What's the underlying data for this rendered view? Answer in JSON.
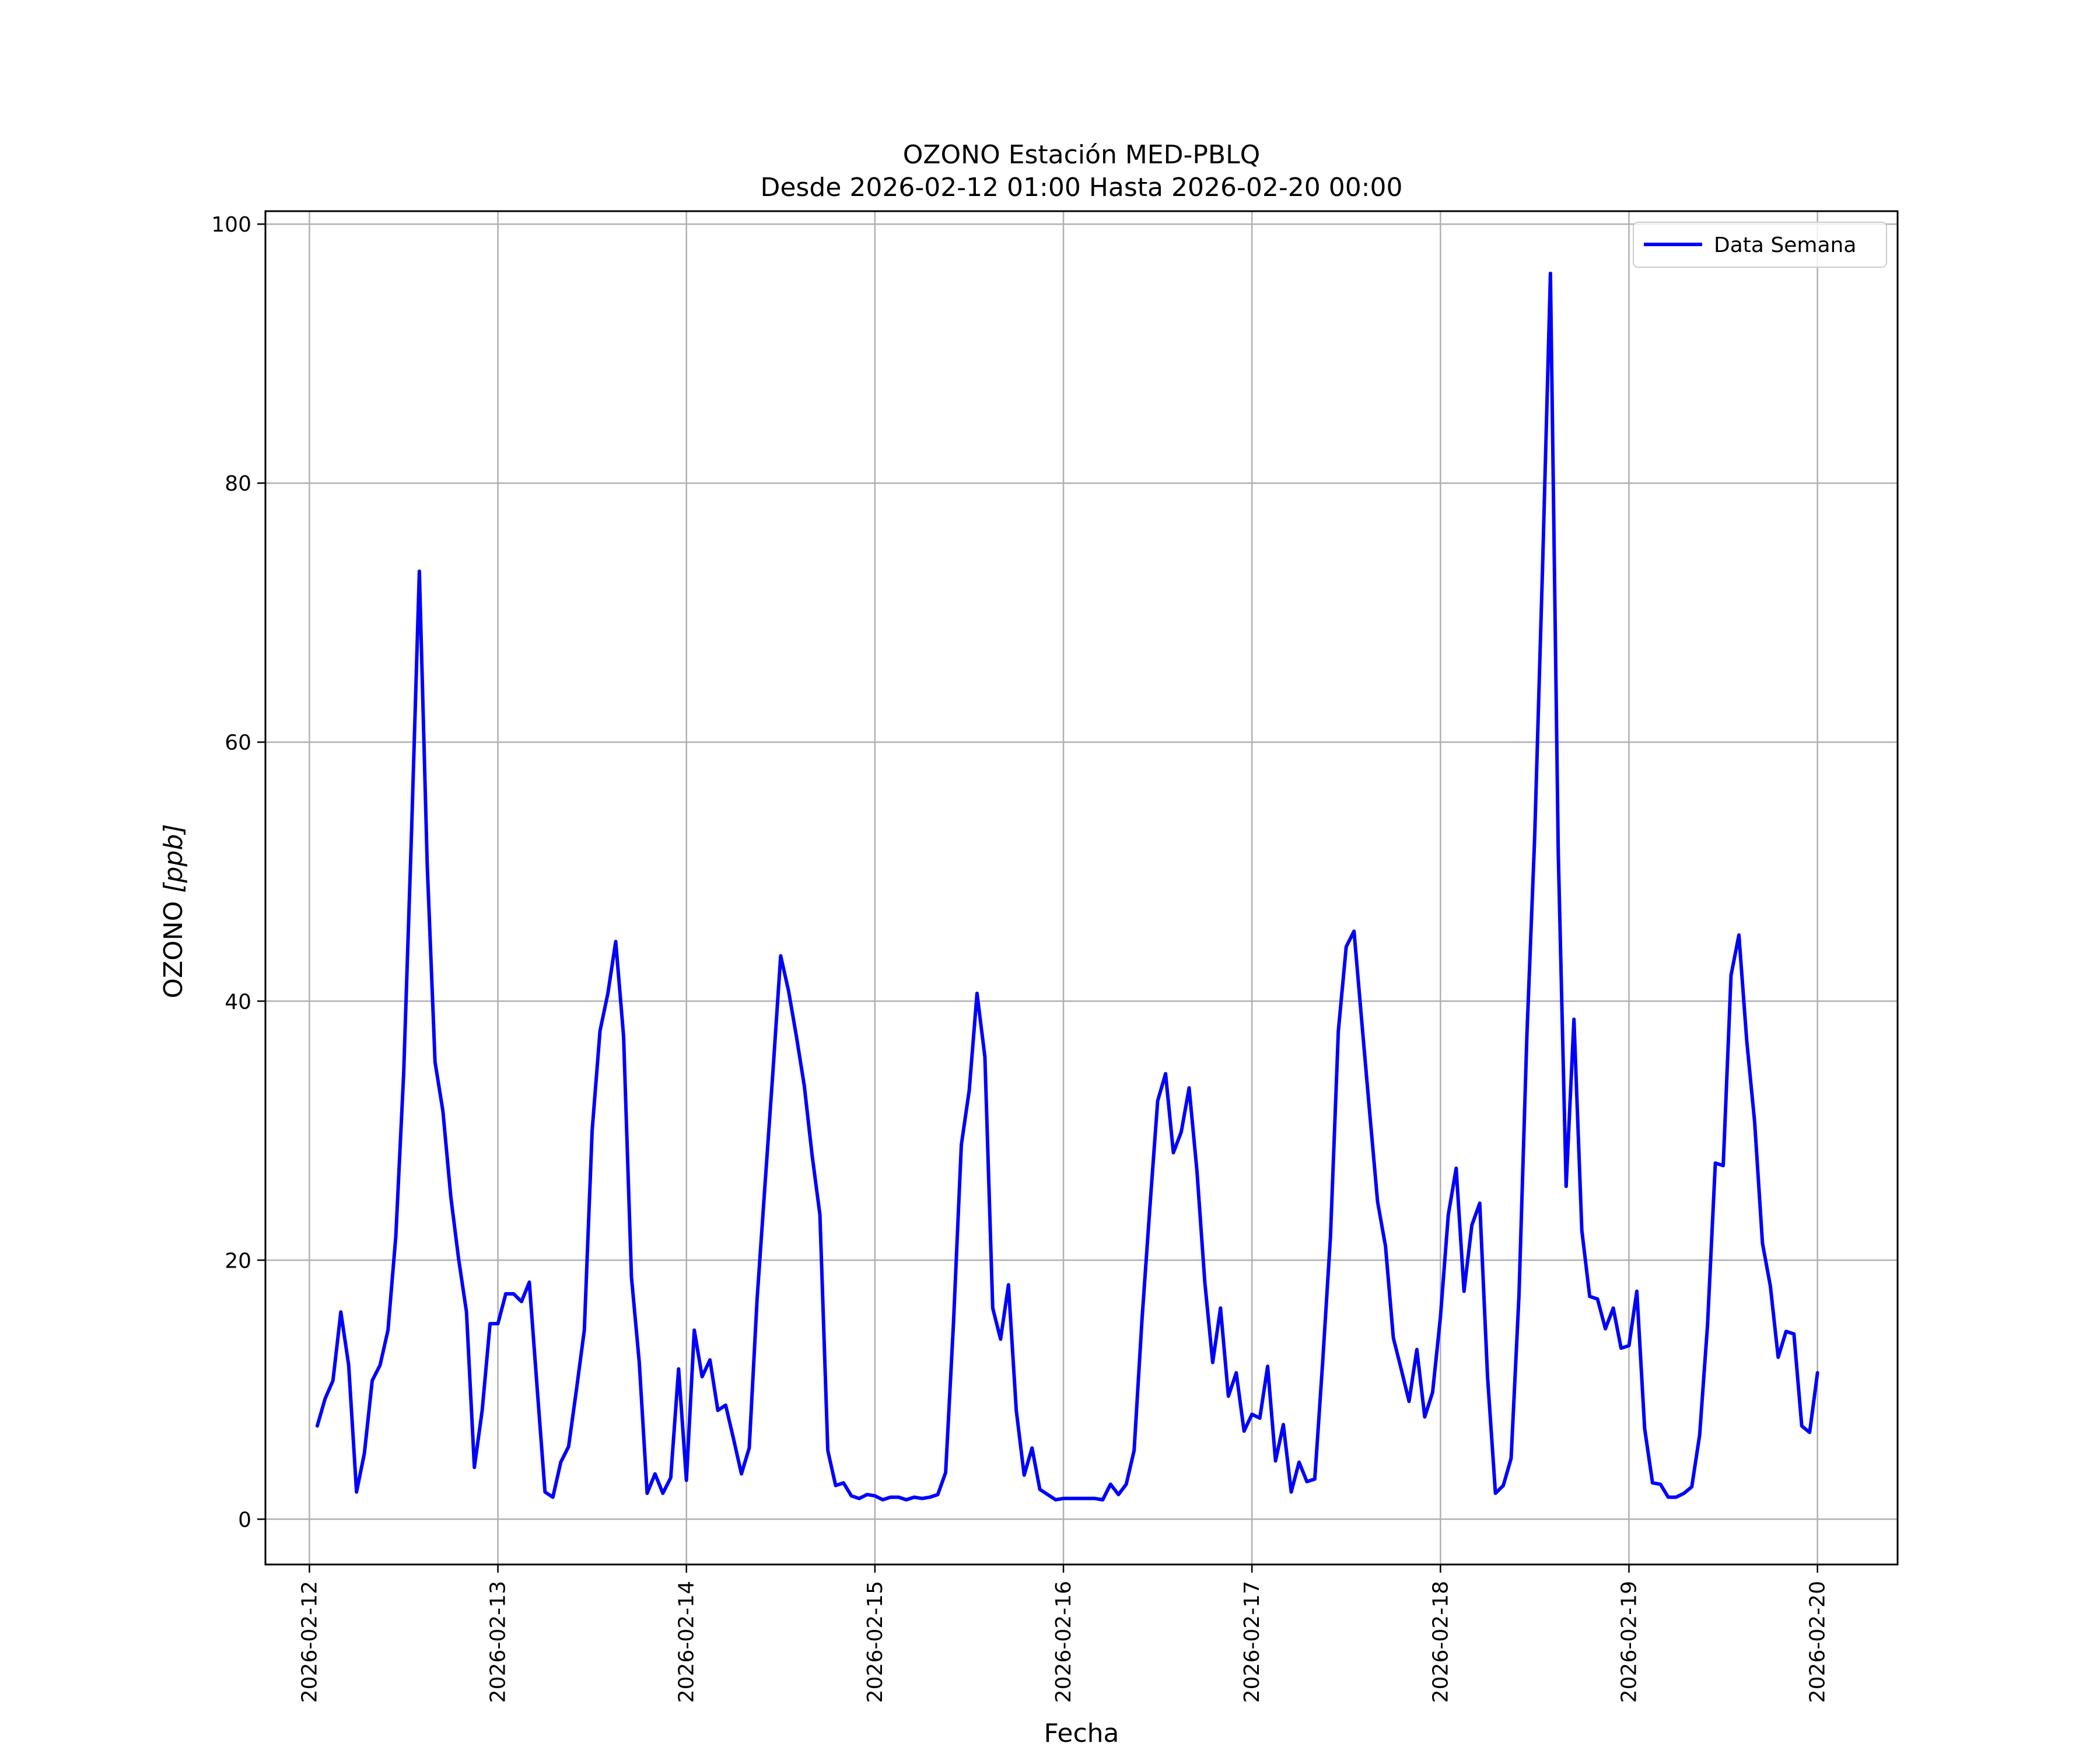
{
  "chart_data": {
    "type": "line",
    "title": "OZONO Estación MED-PBLQ",
    "subtitle": "Desde 2026-02-12 01:00 Hasta 2026-02-20 00:00",
    "xlabel": "Fecha",
    "ylabel": "OZONO [ppb]",
    "ylabel_main": "OZONO ",
    "ylabel_unit": "[ppb]",
    "xlim": [
      "2026-02-11 18:24",
      "2026-02-20 10:12"
    ],
    "ylim": [
      -3.5,
      101
    ],
    "x_ticks": [
      "2026-02-12",
      "2026-02-13",
      "2026-02-14",
      "2026-02-15",
      "2026-02-16",
      "2026-02-17",
      "2026-02-18",
      "2026-02-19",
      "2026-02-20"
    ],
    "y_ticks": [
      0,
      20,
      40,
      60,
      80,
      100
    ],
    "y_tick_labels": [
      "0",
      "20",
      "40",
      "60",
      "80",
      "100"
    ],
    "grid": true,
    "legend_position": "top-right",
    "series": [
      {
        "name": "Data Semana",
        "color": "#0000ff",
        "start": "2026-02-12 01:00",
        "step_hours": 1,
        "values": [
          7.2,
          9.3,
          10.7,
          16.0,
          11.9,
          2.1,
          5.1,
          10.7,
          11.9,
          14.6,
          21.8,
          34.4,
          52.9,
          73.2,
          50.5,
          35.3,
          31.5,
          24.9,
          20.1,
          16.0,
          4.0,
          8.4,
          15.1,
          15.1,
          17.4,
          17.4,
          16.8,
          18.3,
          10.1,
          2.1,
          1.7,
          4.4,
          5.6,
          10.0,
          14.6,
          30.0,
          37.7,
          40.6,
          44.6,
          37.3,
          18.7,
          12.1,
          2.0,
          3.5,
          2.0,
          3.2,
          11.6,
          3.0,
          14.6,
          11.0,
          12.3,
          8.4,
          8.8,
          6.2,
          3.5,
          5.5,
          17.0,
          25.8,
          34.4,
          43.5,
          40.8,
          37.3,
          33.5,
          28.1,
          23.5,
          5.3,
          2.6,
          2.8,
          1.8,
          1.6,
          1.9,
          1.8,
          1.5,
          1.7,
          1.7,
          1.5,
          1.7,
          1.6,
          1.7,
          1.9,
          3.6,
          15.1,
          28.9,
          33.1,
          40.6,
          35.7,
          16.3,
          13.9,
          18.1,
          8.4,
          3.4,
          5.5,
          2.3,
          1.9,
          1.5,
          1.6,
          1.6,
          1.6,
          1.6,
          1.6,
          1.5,
          2.7,
          1.9,
          2.7,
          5.3,
          15.4,
          24.0,
          32.3,
          34.4,
          28.3,
          29.9,
          33.3,
          26.9,
          18.3,
          12.1,
          16.3,
          9.5,
          11.3,
          6.8,
          8.1,
          7.8,
          11.8,
          4.5,
          7.3,
          2.1,
          4.4,
          2.9,
          3.1,
          12.1,
          21.8,
          37.7,
          44.2,
          45.4,
          38.3,
          31.3,
          24.5,
          21.1,
          14.0,
          11.6,
          9.1,
          13.1,
          7.9,
          9.8,
          15.6,
          23.5,
          27.1,
          17.6,
          22.7,
          24.4,
          11.0,
          2.0,
          2.6,
          4.7,
          17.3,
          37.3,
          52.7,
          73.5,
          96.2,
          51.5,
          25.7,
          38.6,
          22.3,
          17.2,
          17.0,
          14.7,
          16.3,
          13.2,
          13.4,
          17.6,
          7.0,
          2.8,
          2.7,
          1.7,
          1.7,
          2.0,
          2.5,
          6.5,
          15.0,
          27.5,
          27.3,
          42.0,
          45.1,
          36.9,
          30.7,
          21.3,
          18.0,
          12.5,
          14.5,
          14.3,
          7.2,
          6.7,
          11.3
        ]
      }
    ]
  }
}
